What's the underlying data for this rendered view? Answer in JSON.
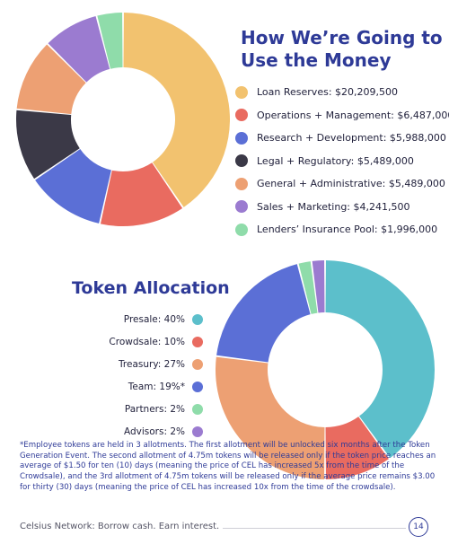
{
  "chart_data": [
    {
      "type": "pie",
      "title": "How We’re Going to Use the Money",
      "labels": [
        "Loan Reserves: $20,209,500",
        "Operations + Management: $6,487,000",
        "Research + Development: $5,988,000",
        "Legal + Regulatory: $5,489,000",
        "General + Administrative: $5,489,000",
        "Sales + Marketing: $4,241,500",
        "Lenders’ Insurance Pool: $1,996,000"
      ],
      "categories": [
        "Loan Reserves",
        "Operations + Management",
        "Research + Development",
        "Legal + Regulatory",
        "General + Administrative",
        "Sales + Marketing",
        "Lenders’ Insurance Pool"
      ],
      "values": [
        20209500,
        6487000,
        5988000,
        5489000,
        5489000,
        4241500,
        1996000
      ],
      "colors": [
        "#f2c26f",
        "#e96b60",
        "#5b6fd6",
        "#3b3947",
        "#eda073",
        "#9b7bd0",
        "#8fdcaa"
      ],
      "legend_position": "right"
    },
    {
      "type": "pie",
      "title": "Token Allocation",
      "labels": [
        "Presale: 40%",
        "Crowdsale: 10%",
        "Treasury: 27%",
        "Team: 19%*",
        "Partners: 2%",
        "Advisors: 2%"
      ],
      "categories": [
        "Presale",
        "Crowdsale",
        "Treasury",
        "Team",
        "Partners",
        "Advisors"
      ],
      "values": [
        40,
        10,
        27,
        19,
        2,
        2
      ],
      "colors": [
        "#5cbfcb",
        "#e96b60",
        "#eda073",
        "#5b6fd6",
        "#8fdcaa",
        "#9b7bd0"
      ],
      "legend_position": "left"
    }
  ],
  "footnote": "*Employee tokens are held in 3 allotments. The first allotment will be unlocked six months after the Token Generation Event. The second allotment of 4.75m tokens will be released only if the token price reaches an average of $1.50 for ten (10) days (meaning the price of CEL has increased 5x from the time of the Crowdsale), and the 3rd allotment of 4.75m tokens will be released only if the average price remains $3.00 for thirty (30) days (meaning the price of CEL has increased 10x from the time of the crowdsale).",
  "footer": "Celsius Network: Borrow cash. Earn interest.",
  "page_number": "14"
}
